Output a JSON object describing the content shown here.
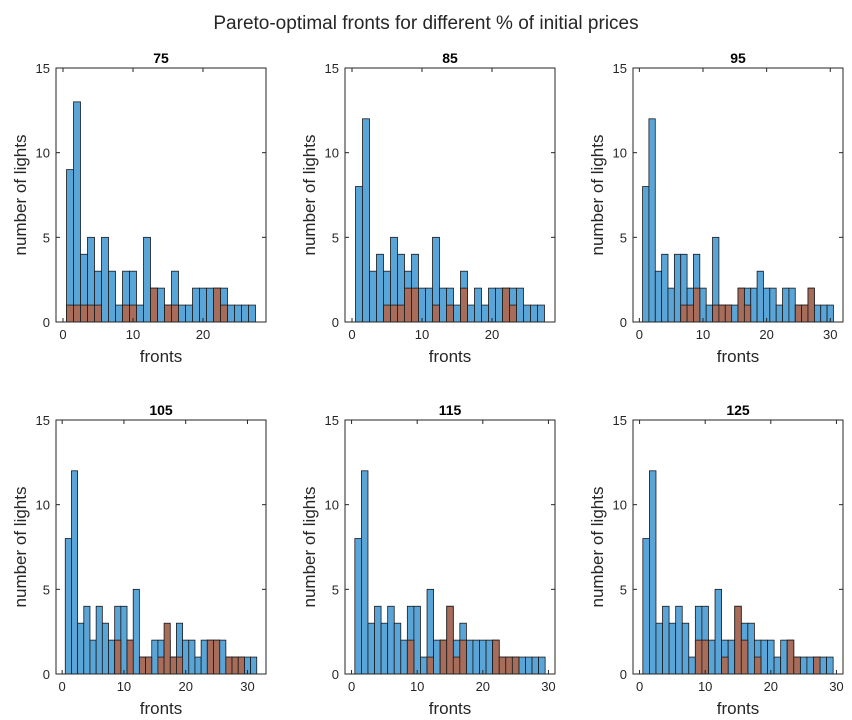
{
  "figure": {
    "title": "Pareto-optimal fronts for different % of initial prices"
  },
  "colors": {
    "blue": "#5aa5d8",
    "brown": "#a86d5a",
    "axis": "#262626"
  },
  "chart_data": [
    {
      "type": "bar",
      "title": "75",
      "xlabel": "fronts",
      "ylabel": "number of lights",
      "xlim": [
        -1,
        29
      ],
      "ylim": [
        0,
        15
      ],
      "xticks": [
        0,
        10,
        20
      ],
      "yticks": [
        0,
        5,
        10,
        15
      ],
      "x": [
        1,
        2,
        3,
        4,
        5,
        6,
        7,
        8,
        9,
        10,
        11,
        12,
        13,
        14,
        15,
        16,
        17,
        18,
        19,
        20,
        21,
        22,
        23,
        24,
        25,
        26,
        27
      ],
      "series": [
        {
          "color": "blue",
          "values": [
            9,
            13,
            4,
            5,
            3,
            5,
            3,
            1,
            3,
            3,
            1,
            5,
            2,
            2,
            1,
            3,
            1,
            1,
            2,
            2,
            2,
            2,
            2,
            1,
            1,
            1,
            1
          ]
        },
        {
          "color": "brown",
          "values": [
            1,
            1,
            1,
            1,
            1,
            0,
            0,
            0,
            1,
            1,
            0,
            0,
            2,
            0,
            1,
            1,
            0,
            0,
            0,
            0,
            0,
            2,
            1,
            0,
            0,
            0,
            0
          ]
        }
      ]
    },
    {
      "type": "bar",
      "title": "85",
      "xlabel": "fronts",
      "ylabel": "number of lights",
      "xlim": [
        -1,
        29
      ],
      "ylim": [
        0,
        15
      ],
      "xticks": [
        0,
        10,
        20
      ],
      "yticks": [
        0,
        5,
        10,
        15
      ],
      "x": [
        1,
        2,
        3,
        4,
        5,
        6,
        7,
        8,
        9,
        10,
        11,
        12,
        13,
        14,
        15,
        16,
        17,
        18,
        19,
        20,
        21,
        22,
        23,
        24,
        25,
        26,
        27
      ],
      "series": [
        {
          "color": "blue",
          "values": [
            8,
            12,
            3,
            4,
            3,
            5,
            4,
            3,
            4,
            2,
            2,
            5,
            2,
            2,
            1,
            3,
            1,
            2,
            1,
            2,
            2,
            2,
            2,
            2,
            1,
            1,
            1
          ]
        },
        {
          "color": "brown",
          "values": [
            0,
            0,
            0,
            0,
            1,
            1,
            1,
            2,
            2,
            0,
            0,
            1,
            0,
            1,
            0,
            2,
            0,
            0,
            0,
            0,
            0,
            2,
            1,
            0,
            0,
            0,
            0
          ]
        }
      ]
    },
    {
      "type": "bar",
      "title": "95",
      "xlabel": "fronts",
      "ylabel": "number of lights",
      "xlim": [
        -1,
        32
      ],
      "ylim": [
        0,
        15
      ],
      "xticks": [
        0,
        10,
        20,
        30
      ],
      "yticks": [
        0,
        5,
        10,
        15
      ],
      "x": [
        1,
        2,
        3,
        4,
        5,
        6,
        7,
        8,
        9,
        10,
        11,
        12,
        13,
        14,
        15,
        16,
        17,
        18,
        19,
        20,
        21,
        22,
        23,
        24,
        25,
        26,
        27,
        28,
        29,
        30
      ],
      "series": [
        {
          "color": "blue",
          "values": [
            8,
            12,
            3,
            4,
            2,
            4,
            4,
            2,
            4,
            2,
            1,
            5,
            1,
            1,
            1,
            2,
            2,
            2,
            3,
            2,
            2,
            1,
            2,
            2,
            1,
            1,
            2,
            1,
            1,
            1
          ]
        },
        {
          "color": "brown",
          "values": [
            0,
            0,
            0,
            0,
            0,
            0,
            1,
            1,
            2,
            0,
            0,
            1,
            1,
            1,
            0,
            2,
            1,
            0,
            0,
            0,
            0,
            0,
            0,
            0,
            1,
            1,
            2,
            0,
            0,
            0
          ]
        }
      ]
    },
    {
      "type": "bar",
      "title": "105",
      "xlabel": "fronts",
      "ylabel": "number of lights",
      "xlim": [
        -1,
        33
      ],
      "ylim": [
        0,
        15
      ],
      "xticks": [
        0,
        10,
        20,
        30
      ],
      "yticks": [
        0,
        5,
        10,
        15
      ],
      "x": [
        1,
        2,
        3,
        4,
        5,
        6,
        7,
        8,
        9,
        10,
        11,
        12,
        13,
        14,
        15,
        16,
        17,
        18,
        19,
        20,
        21,
        22,
        23,
        24,
        25,
        26,
        27,
        28,
        29,
        30,
        31
      ],
      "series": [
        {
          "color": "blue",
          "values": [
            8,
            12,
            3,
            4,
            2,
            4,
            3,
            2,
            4,
            4,
            2,
            5,
            1,
            1,
            2,
            2,
            2,
            1,
            3,
            2,
            2,
            1,
            2,
            2,
            2,
            2,
            1,
            1,
            1,
            1,
            1
          ]
        },
        {
          "color": "brown",
          "values": [
            0,
            0,
            0,
            0,
            0,
            0,
            0,
            0,
            2,
            0,
            2,
            0,
            1,
            1,
            0,
            1,
            3,
            1,
            1,
            0,
            0,
            0,
            0,
            2,
            2,
            0,
            1,
            1,
            1,
            0,
            0
          ]
        }
      ]
    },
    {
      "type": "bar",
      "title": "115",
      "xlabel": "fronts",
      "ylabel": "number of lights",
      "xlim": [
        -1,
        31
      ],
      "ylim": [
        0,
        15
      ],
      "xticks": [
        0,
        10,
        20,
        30
      ],
      "yticks": [
        0,
        5,
        10,
        15
      ],
      "x": [
        1,
        2,
        3,
        4,
        5,
        6,
        7,
        8,
        9,
        10,
        11,
        12,
        13,
        14,
        15,
        16,
        17,
        18,
        19,
        20,
        21,
        22,
        23,
        24,
        25,
        26,
        27,
        28,
        29
      ],
      "series": [
        {
          "color": "blue",
          "values": [
            8,
            12,
            3,
            4,
            3,
            4,
            3,
            2,
            4,
            4,
            1,
            5,
            2,
            2,
            4,
            2,
            3,
            2,
            2,
            2,
            2,
            2,
            1,
            1,
            1,
            1,
            1,
            1,
            1
          ]
        },
        {
          "color": "brown",
          "values": [
            0,
            0,
            0,
            0,
            0,
            0,
            0,
            0,
            2,
            0,
            0,
            1,
            0,
            2,
            4,
            1,
            2,
            0,
            0,
            0,
            0,
            2,
            1,
            1,
            1,
            0,
            0,
            0,
            0
          ]
        }
      ]
    },
    {
      "type": "bar",
      "title": "125",
      "xlabel": "fronts",
      "ylabel": "number of lights",
      "xlim": [
        -1,
        31
      ],
      "ylim": [
        0,
        15
      ],
      "xticks": [
        0,
        10,
        20,
        30
      ],
      "yticks": [
        0,
        5,
        10,
        15
      ],
      "x": [
        1,
        2,
        3,
        4,
        5,
        6,
        7,
        8,
        9,
        10,
        11,
        12,
        13,
        14,
        15,
        16,
        17,
        18,
        19,
        20,
        21,
        22,
        23,
        24,
        25,
        26,
        27,
        28,
        29
      ],
      "series": [
        {
          "color": "blue",
          "values": [
            8,
            12,
            3,
            4,
            3,
            4,
            3,
            1,
            4,
            4,
            2,
            5,
            2,
            2,
            4,
            3,
            3,
            2,
            2,
            2,
            1,
            2,
            2,
            1,
            1,
            1,
            1,
            1,
            1
          ]
        },
        {
          "color": "brown",
          "values": [
            0,
            0,
            0,
            0,
            0,
            0,
            0,
            0,
            2,
            2,
            0,
            0,
            1,
            0,
            4,
            2,
            0,
            1,
            0,
            0,
            0,
            0,
            2,
            1,
            0,
            0,
            1,
            0,
            0
          ]
        }
      ]
    }
  ]
}
